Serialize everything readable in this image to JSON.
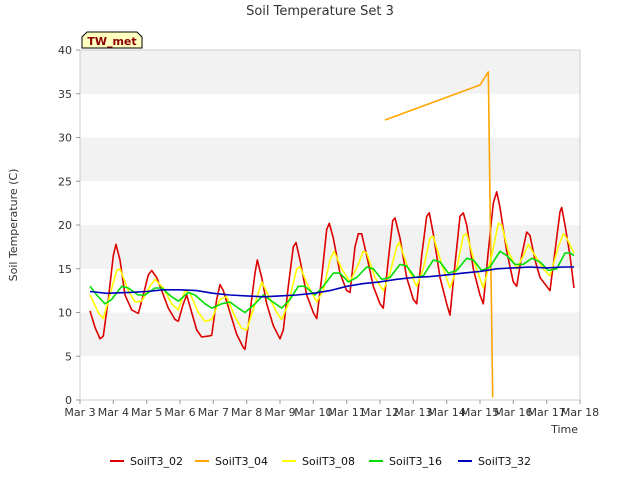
{
  "chart_data": {
    "type": "line",
    "title": "Soil Temperature Set 3",
    "xlabel": "Time",
    "ylabel": "Soil Temperature (C)",
    "annotation": "TW_met",
    "xlim": [
      3,
      18
    ],
    "ylim": [
      0,
      40
    ],
    "x_ticks": [
      "Mar 3",
      "Mar 4",
      "Mar 5",
      "Mar 6",
      "Mar 7",
      "Mar 8",
      "Mar 9",
      "Mar 10",
      "Mar 11",
      "Mar 12",
      "Mar 13",
      "Mar 14",
      "Mar 15",
      "Mar 16",
      "Mar 17",
      "Mar 18"
    ],
    "y_ticks": [
      0,
      5,
      10,
      15,
      20,
      25,
      30,
      35,
      40
    ],
    "grid": "horizontal bands",
    "legend_position": "bottom",
    "series": [
      {
        "name": "SoilT3_02",
        "color": "#dd0000",
        "points": [
          [
            3.3,
            10.2
          ],
          [
            3.45,
            8.3
          ],
          [
            3.6,
            7.0
          ],
          [
            3.7,
            7.3
          ],
          [
            3.85,
            11.5
          ],
          [
            4.0,
            16.5
          ],
          [
            4.08,
            17.8
          ],
          [
            4.2,
            16.0
          ],
          [
            4.35,
            12.0
          ],
          [
            4.55,
            10.3
          ],
          [
            4.75,
            9.9
          ],
          [
            4.9,
            12.0
          ],
          [
            5.05,
            14.3
          ],
          [
            5.15,
            14.8
          ],
          [
            5.3,
            14.0
          ],
          [
            5.45,
            12.5
          ],
          [
            5.65,
            10.5
          ],
          [
            5.85,
            9.2
          ],
          [
            5.95,
            9.0
          ],
          [
            6.1,
            11.0
          ],
          [
            6.2,
            12.0
          ],
          [
            6.35,
            10.0
          ],
          [
            6.5,
            8.0
          ],
          [
            6.65,
            7.2
          ],
          [
            6.85,
            7.3
          ],
          [
            6.95,
            7.4
          ],
          [
            7.1,
            11.5
          ],
          [
            7.2,
            13.2
          ],
          [
            7.3,
            12.5
          ],
          [
            7.5,
            10.0
          ],
          [
            7.7,
            7.5
          ],
          [
            7.9,
            6.0
          ],
          [
            7.95,
            5.8
          ],
          [
            8.1,
            10.0
          ],
          [
            8.25,
            14.5
          ],
          [
            8.32,
            16.0
          ],
          [
            8.45,
            14.0
          ],
          [
            8.6,
            11.0
          ],
          [
            8.8,
            8.5
          ],
          [
            9.0,
            7.0
          ],
          [
            9.1,
            8.0
          ],
          [
            9.25,
            13.0
          ],
          [
            9.4,
            17.5
          ],
          [
            9.48,
            18.0
          ],
          [
            9.6,
            16.0
          ],
          [
            9.8,
            12.0
          ],
          [
            10.0,
            10.0
          ],
          [
            10.1,
            9.3
          ],
          [
            10.25,
            14.0
          ],
          [
            10.4,
            19.5
          ],
          [
            10.48,
            20.2
          ],
          [
            10.6,
            18.5
          ],
          [
            10.8,
            14.5
          ],
          [
            11.0,
            12.5
          ],
          [
            11.1,
            12.3
          ],
          [
            11.25,
            17.5
          ],
          [
            11.35,
            19.0
          ],
          [
            11.45,
            19.0
          ],
          [
            11.6,
            16.5
          ],
          [
            11.8,
            13.0
          ],
          [
            12.0,
            11.0
          ],
          [
            12.1,
            10.5
          ],
          [
            12.25,
            16.0
          ],
          [
            12.38,
            20.5
          ],
          [
            12.45,
            20.8
          ],
          [
            12.6,
            18.5
          ],
          [
            12.8,
            14.0
          ],
          [
            13.0,
            11.5
          ],
          [
            13.1,
            11.0
          ],
          [
            13.25,
            16.5
          ],
          [
            13.4,
            21.0
          ],
          [
            13.48,
            21.4
          ],
          [
            13.6,
            19.0
          ],
          [
            13.8,
            14.0
          ],
          [
            14.0,
            11.0
          ],
          [
            14.1,
            9.7
          ],
          [
            14.25,
            15.5
          ],
          [
            14.4,
            21.0
          ],
          [
            14.5,
            21.4
          ],
          [
            14.6,
            20.0
          ],
          [
            14.8,
            15.0
          ],
          [
            15.0,
            12.0
          ],
          [
            15.1,
            11.0
          ],
          [
            15.25,
            17.0
          ],
          [
            15.4,
            22.5
          ],
          [
            15.5,
            23.8
          ],
          [
            15.6,
            22.0
          ],
          [
            15.8,
            17.0
          ],
          [
            16.0,
            13.5
          ],
          [
            16.1,
            13.0
          ],
          [
            16.25,
            16.5
          ],
          [
            16.4,
            19.2
          ],
          [
            16.5,
            18.8
          ],
          [
            16.65,
            16.0
          ],
          [
            16.8,
            14.0
          ],
          [
            17.0,
            13.0
          ],
          [
            17.1,
            12.5
          ],
          [
            17.25,
            17.0
          ],
          [
            17.4,
            21.5
          ],
          [
            17.45,
            22.0
          ],
          [
            17.55,
            20.0
          ],
          [
            17.7,
            16.5
          ],
          [
            17.82,
            12.8
          ]
        ]
      },
      {
        "name": "SoilT3_04",
        "color": "#ffa500",
        "points": [
          [
            12.15,
            32.0
          ],
          [
            15.0,
            36.0
          ],
          [
            15.25,
            37.5
          ],
          [
            15.38,
            0.3
          ]
        ]
      },
      {
        "name": "SoilT3_08",
        "color": "#ffff00",
        "points": [
          [
            3.3,
            12.0
          ],
          [
            3.55,
            10.0
          ],
          [
            3.7,
            9.3
          ],
          [
            3.9,
            12.0
          ],
          [
            4.1,
            14.8
          ],
          [
            4.2,
            15.0
          ],
          [
            4.45,
            12.5
          ],
          [
            4.65,
            11.2
          ],
          [
            4.85,
            11.3
          ],
          [
            5.1,
            13.0
          ],
          [
            5.25,
            13.8
          ],
          [
            5.5,
            12.8
          ],
          [
            5.75,
            11.0
          ],
          [
            5.95,
            10.3
          ],
          [
            6.15,
            12.5
          ],
          [
            6.3,
            12.2
          ],
          [
            6.55,
            10.0
          ],
          [
            6.75,
            9.0
          ],
          [
            6.95,
            9.2
          ],
          [
            7.2,
            11.5
          ],
          [
            7.4,
            11.8
          ],
          [
            7.65,
            9.5
          ],
          [
            7.85,
            8.2
          ],
          [
            8.0,
            8.0
          ],
          [
            8.25,
            11.0
          ],
          [
            8.45,
            13.5
          ],
          [
            8.65,
            12.0
          ],
          [
            8.9,
            10.0
          ],
          [
            9.05,
            9.2
          ],
          [
            9.25,
            11.0
          ],
          [
            9.5,
            15.0
          ],
          [
            9.6,
            15.2
          ],
          [
            9.85,
            13.0
          ],
          [
            10.1,
            11.2
          ],
          [
            10.3,
            12.5
          ],
          [
            10.5,
            16.0
          ],
          [
            10.62,
            17.0
          ],
          [
            10.85,
            15.0
          ],
          [
            11.1,
            13.5
          ],
          [
            11.35,
            15.5
          ],
          [
            11.5,
            17.0
          ],
          [
            11.6,
            16.8
          ],
          [
            11.85,
            14.0
          ],
          [
            12.1,
            12.5
          ],
          [
            12.3,
            14.5
          ],
          [
            12.5,
            17.5
          ],
          [
            12.58,
            18.0
          ],
          [
            12.85,
            15.0
          ],
          [
            13.1,
            13.0
          ],
          [
            13.3,
            15.0
          ],
          [
            13.5,
            18.5
          ],
          [
            13.6,
            18.7
          ],
          [
            13.85,
            15.5
          ],
          [
            14.1,
            12.8
          ],
          [
            14.3,
            15.0
          ],
          [
            14.5,
            18.8
          ],
          [
            14.6,
            19.0
          ],
          [
            14.85,
            15.5
          ],
          [
            15.1,
            12.8
          ],
          [
            15.35,
            16.5
          ],
          [
            15.55,
            20.2
          ],
          [
            15.65,
            20.0
          ],
          [
            15.85,
            17.0
          ],
          [
            16.1,
            15.0
          ],
          [
            16.3,
            16.5
          ],
          [
            16.45,
            17.8
          ],
          [
            16.65,
            16.5
          ],
          [
            16.9,
            15.0
          ],
          [
            17.1,
            14.2
          ],
          [
            17.35,
            17.5
          ],
          [
            17.5,
            19.0
          ],
          [
            17.6,
            18.5
          ],
          [
            17.82,
            16.8
          ]
        ]
      },
      {
        "name": "SoilT3_16",
        "color": "#00dd00",
        "points": [
          [
            3.3,
            13.0
          ],
          [
            3.5,
            12.0
          ],
          [
            3.75,
            11.0
          ],
          [
            3.95,
            11.5
          ],
          [
            4.25,
            13.0
          ],
          [
            4.45,
            12.8
          ],
          [
            4.75,
            12.0
          ],
          [
            4.95,
            12.0
          ],
          [
            5.25,
            12.8
          ],
          [
            5.45,
            12.8
          ],
          [
            5.75,
            11.8
          ],
          [
            5.95,
            11.3
          ],
          [
            6.25,
            12.3
          ],
          [
            6.45,
            12.0
          ],
          [
            6.75,
            11.0
          ],
          [
            6.95,
            10.5
          ],
          [
            7.25,
            11.0
          ],
          [
            7.5,
            11.2
          ],
          [
            7.75,
            10.5
          ],
          [
            7.95,
            10.0
          ],
          [
            8.25,
            11.0
          ],
          [
            8.5,
            12.0
          ],
          [
            8.75,
            11.3
          ],
          [
            9.05,
            10.5
          ],
          [
            9.3,
            11.5
          ],
          [
            9.55,
            13.0
          ],
          [
            9.75,
            13.0
          ],
          [
            10.05,
            12.0
          ],
          [
            10.3,
            13.0
          ],
          [
            10.6,
            14.5
          ],
          [
            10.8,
            14.5
          ],
          [
            11.05,
            13.5
          ],
          [
            11.3,
            14.0
          ],
          [
            11.6,
            15.2
          ],
          [
            11.8,
            15.0
          ],
          [
            12.05,
            13.8
          ],
          [
            12.3,
            14.0
          ],
          [
            12.6,
            15.5
          ],
          [
            12.8,
            15.3
          ],
          [
            13.05,
            14.0
          ],
          [
            13.3,
            14.2
          ],
          [
            13.6,
            16.0
          ],
          [
            13.8,
            15.8
          ],
          [
            14.05,
            14.5
          ],
          [
            14.3,
            14.8
          ],
          [
            14.6,
            16.2
          ],
          [
            14.8,
            16.0
          ],
          [
            15.05,
            14.8
          ],
          [
            15.3,
            15.2
          ],
          [
            15.6,
            17.0
          ],
          [
            15.8,
            16.5
          ],
          [
            16.05,
            15.5
          ],
          [
            16.3,
            15.5
          ],
          [
            16.55,
            16.2
          ],
          [
            16.8,
            15.8
          ],
          [
            17.05,
            14.8
          ],
          [
            17.3,
            15.0
          ],
          [
            17.55,
            16.8
          ],
          [
            17.7,
            16.8
          ],
          [
            17.82,
            16.5
          ]
        ]
      },
      {
        "name": "SoilT3_32",
        "color": "#0000bb",
        "points": [
          [
            3.3,
            12.4
          ],
          [
            3.8,
            12.2
          ],
          [
            4.5,
            12.3
          ],
          [
            5.0,
            12.4
          ],
          [
            5.5,
            12.6
          ],
          [
            6.0,
            12.6
          ],
          [
            6.5,
            12.5
          ],
          [
            7.0,
            12.2
          ],
          [
            7.5,
            12.0
          ],
          [
            8.0,
            11.9
          ],
          [
            8.5,
            11.8
          ],
          [
            9.0,
            11.9
          ],
          [
            9.5,
            12.0
          ],
          [
            10.0,
            12.2
          ],
          [
            10.5,
            12.5
          ],
          [
            11.0,
            13.0
          ],
          [
            11.5,
            13.3
          ],
          [
            12.0,
            13.5
          ],
          [
            12.5,
            13.8
          ],
          [
            13.0,
            14.0
          ],
          [
            13.5,
            14.1
          ],
          [
            14.0,
            14.3
          ],
          [
            14.5,
            14.5
          ],
          [
            15.0,
            14.7
          ],
          [
            15.5,
            15.0
          ],
          [
            16.0,
            15.1
          ],
          [
            16.5,
            15.2
          ],
          [
            17.0,
            15.1
          ],
          [
            17.5,
            15.2
          ],
          [
            17.82,
            15.2
          ]
        ]
      }
    ]
  }
}
